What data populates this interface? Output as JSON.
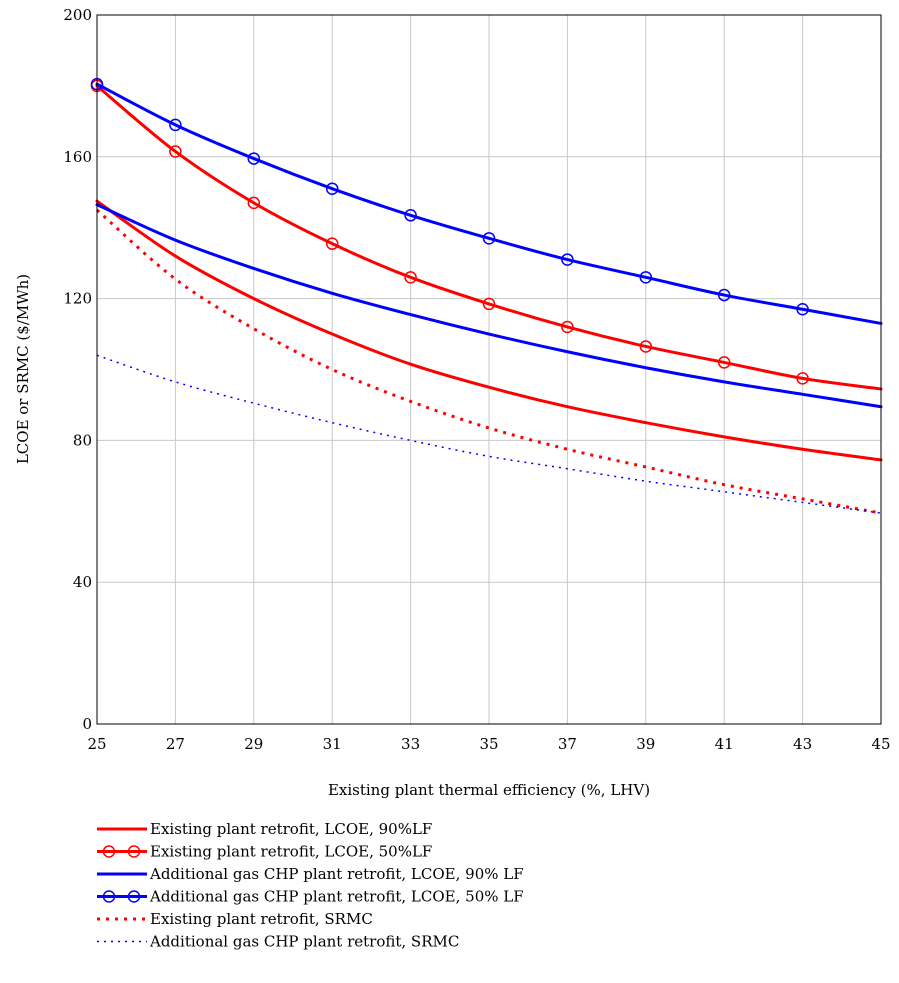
{
  "chart_data": {
    "type": "line",
    "xlabel": "Existing plant thermal efficiency (%, LHV)",
    "ylabel": "LCOE or SRMC ($/MWh)",
    "xlim": [
      25,
      45
    ],
    "ylim": [
      0,
      200
    ],
    "x_ticks": [
      "25",
      "27",
      "29",
      "31",
      "33",
      "35",
      "37",
      "39",
      "41",
      "43",
      "45"
    ],
    "y_ticks": [
      "0",
      "40",
      "80",
      "120",
      "160",
      "200"
    ],
    "grid": true,
    "legend_position": "below",
    "x": [
      25,
      27,
      29,
      31,
      33,
      35,
      37,
      39,
      41,
      43,
      45
    ],
    "series": [
      {
        "name": "Existing plant retrofit, LCOE, 90%LF",
        "color": "#ff0000",
        "style": "solid",
        "marker": "none",
        "values": [
          147.5,
          132.0,
          120.0,
          110.0,
          101.5,
          95.0,
          89.5,
          85.0,
          81.0,
          77.5,
          74.5
        ]
      },
      {
        "name": "Existing plant retrofit, LCOE, 50%LF",
        "color": "#ff0000",
        "style": "solid",
        "marker": "circle",
        "values": [
          180.0,
          161.5,
          147.0,
          135.5,
          126.0,
          118.5,
          112.0,
          106.5,
          102.0,
          97.5,
          94.5
        ]
      },
      {
        "name": "Additional gas CHP plant retrofit, LCOE, 90% LF",
        "color": "#0000ff",
        "style": "solid",
        "marker": "none",
        "values": [
          146.5,
          136.5,
          128.5,
          121.5,
          115.5,
          110.0,
          105.0,
          100.5,
          96.5,
          93.0,
          89.5
        ]
      },
      {
        "name": "Additional gas CHP plant retrofit, LCOE, 50% LF",
        "color": "#0000ff",
        "style": "solid",
        "marker": "circle",
        "values": [
          180.5,
          169.0,
          159.5,
          151.0,
          143.5,
          137.0,
          131.0,
          126.0,
          121.0,
          117.0,
          113.0
        ]
      },
      {
        "name": "Existing plant retrofit, SRMC",
        "color": "#ff0000",
        "style": "dotted-heavy",
        "marker": "none",
        "values": [
          145.0,
          125.5,
          111.5,
          100.0,
          91.0,
          83.5,
          77.5,
          72.5,
          67.5,
          63.5,
          59.5
        ]
      },
      {
        "name": "Additional gas CHP plant retrofit, SRMC",
        "color": "#0000ff",
        "style": "dotted-light",
        "marker": "none",
        "values": [
          104.0,
          96.5,
          90.5,
          85.0,
          80.0,
          75.5,
          72.0,
          68.5,
          65.5,
          62.5,
          59.5
        ]
      }
    ]
  }
}
